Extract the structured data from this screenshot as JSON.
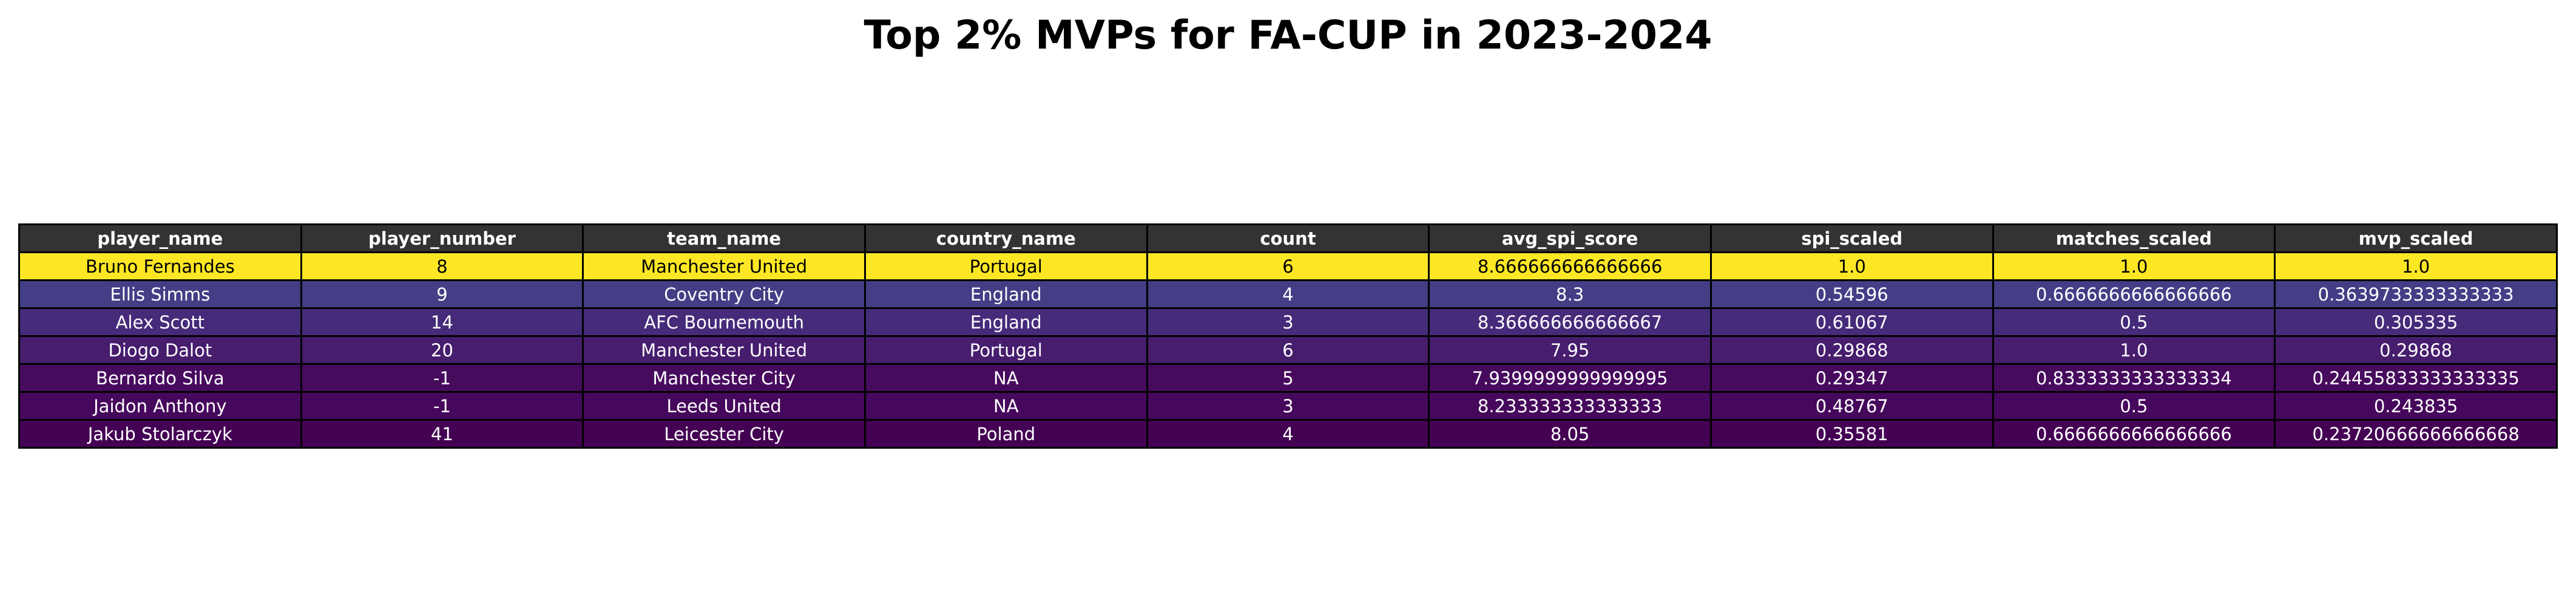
{
  "chart_data": {
    "type": "table",
    "title": "Top 2% MVPs for FA-CUP in 2023-2024",
    "columns": [
      "player_name",
      "player_number",
      "team_name",
      "country_name",
      "count",
      "avg_spi_score",
      "spi_scaled",
      "matches_scaled",
      "mvp_scaled"
    ],
    "rows": [
      [
        "Bruno Fernandes",
        "8",
        "Manchester United",
        "Portugal",
        "6",
        "8.666666666666666",
        "1.0",
        "1.0",
        "1.0"
      ],
      [
        "Ellis Simms",
        "9",
        "Coventry City",
        "England",
        "4",
        "8.3",
        "0.54596",
        "0.6666666666666666",
        "0.3639733333333333"
      ],
      [
        "Alex Scott",
        "14",
        "AFC Bournemouth",
        "England",
        "3",
        "8.366666666666667",
        "0.61067",
        "0.5",
        "0.305335"
      ],
      [
        "Diogo Dalot",
        "20",
        "Manchester United",
        "Portugal",
        "6",
        "7.95",
        "0.29868",
        "1.0",
        "0.29868"
      ],
      [
        "Bernardo Silva",
        "-1",
        "Manchester City",
        "NA",
        "5",
        "7.9399999999999995",
        "0.29347",
        "0.8333333333333334",
        "0.24455833333333335"
      ],
      [
        "Jaidon Anthony",
        "-1",
        "Leeds United",
        "NA",
        "3",
        "8.233333333333333",
        "0.48767",
        "0.5",
        "0.243835"
      ],
      [
        "Jakub Stolarczyk",
        "41",
        "Leicester City",
        "Poland",
        "4",
        "8.05",
        "0.35581",
        "0.6666666666666666",
        "0.23720666666666668"
      ]
    ],
    "row_colors": [
      "#fde725",
      "#433e85",
      "#462b7a",
      "#471d6e",
      "#470b5e",
      "#46085c",
      "#440154"
    ],
    "row_text_colors": [
      "#000000",
      "#ffffff",
      "#ffffff",
      "#ffffff",
      "#ffffff",
      "#ffffff",
      "#ffffff"
    ],
    "header_color": "#333333",
    "header_text_color": "#ffffff"
  }
}
